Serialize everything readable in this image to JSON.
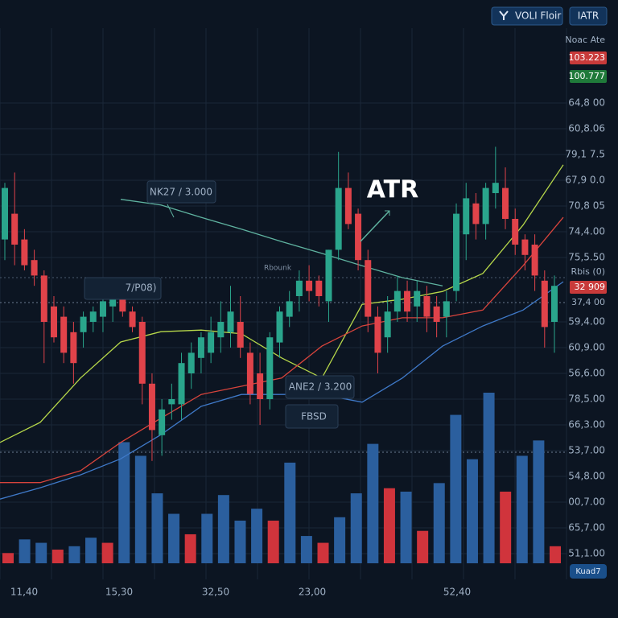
{
  "chart_data": {
    "type": "candlestick",
    "title": "ATR",
    "buttons": [
      "VOLI Floir",
      "IATR"
    ],
    "annotations": [
      "NK27 / 3.000",
      "7/P08)",
      "ANE2 / 3.200",
      "FBSD",
      "Rbounk"
    ],
    "price_badges": [
      {
        "label": "Noac Ate"
      },
      {
        "label": "103.223",
        "color": "#c83a3a"
      },
      {
        "label": "100.777",
        "color": "#1f7a3a"
      },
      {
        "label": "Rbis (0)"
      },
      {
        "label": "32 909",
        "color": "#c83a3a"
      },
      {
        "label": "37,4 00"
      }
    ],
    "corner_label": "Kuad7",
    "xtick_labels": [
      "11,40",
      "15,30",
      "32,50",
      "23,00",
      "52,40"
    ],
    "ylim": [
      0,
      100
    ],
    "yticks": [
      {
        "value": 92.5,
        "label": "64,8 00"
      },
      {
        "value": 87.5,
        "label": "60,8.06"
      },
      {
        "value": 82.5,
        "label": "79,1 7.5"
      },
      {
        "value": 77.5,
        "label": "67,9 0.0"
      },
      {
        "value": 72.5,
        "label": "70,8 05"
      },
      {
        "value": 67.5,
        "label": "74,4.00"
      },
      {
        "value": 62.5,
        "label": "75,5.50"
      },
      {
        "value": 50,
        "label": "59,4.00"
      },
      {
        "value": 45,
        "label": "60,9.00"
      },
      {
        "value": 40,
        "label": "56,6.00"
      },
      {
        "value": 35,
        "label": "78,5.00"
      },
      {
        "value": 30,
        "label": "66,3.00"
      },
      {
        "value": 25,
        "label": "53,7.00"
      },
      {
        "value": 20,
        "label": "54,8.00"
      },
      {
        "value": 15,
        "label": "00,7.00"
      },
      {
        "value": 10,
        "label": "65,7.00"
      },
      {
        "value": 5,
        "label": "51,1.00"
      }
    ],
    "up_color": "#2aa58c",
    "down_color": "#e0434a",
    "candles": {
      "open": [
        66,
        71,
        66,
        62,
        59,
        53,
        51,
        48,
        48,
        50,
        51,
        53,
        55,
        52,
        50,
        38,
        28,
        34,
        34,
        40,
        43,
        44,
        47,
        48,
        50,
        44,
        40,
        35,
        46,
        51,
        55,
        58,
        58,
        54,
        64,
        76,
        71,
        62,
        51,
        47,
        52,
        56,
        53,
        55,
        53,
        51,
        56,
        67,
        73,
        69,
        75,
        76,
        70,
        66,
        65,
        58,
        50
      ],
      "high": [
        77,
        79,
        68,
        64,
        60,
        55,
        53,
        50,
        52,
        53,
        56,
        58,
        57,
        53,
        51,
        40,
        35,
        38,
        44,
        46,
        48,
        51,
        54,
        57,
        55,
        46,
        44,
        48,
        53,
        56,
        60,
        61,
        59,
        64,
        83,
        79,
        72,
        64,
        53,
        55,
        59,
        58,
        58,
        57,
        55,
        56,
        73,
        77,
        75,
        77,
        84,
        80,
        72,
        67,
        67,
        60,
        59
      ],
      "low": [
        62,
        61,
        60,
        57,
        42,
        46,
        42,
        38,
        45,
        48,
        48,
        50,
        51,
        48,
        34,
        23,
        24,
        31,
        31,
        37,
        40,
        42,
        44,
        45,
        43,
        34,
        30,
        33,
        43,
        49,
        52,
        54,
        53,
        50,
        62,
        68,
        60,
        48,
        40,
        44,
        50,
        50,
        50,
        48,
        47,
        47,
        54,
        62,
        66,
        66,
        72,
        68,
        63,
        60,
        56,
        45,
        44
      ],
      "close": [
        76,
        65,
        61,
        59,
        50,
        47,
        44,
        42,
        51,
        52,
        54,
        55,
        52,
        49,
        38,
        29,
        33,
        35,
        42,
        44,
        47,
        48,
        50,
        52,
        45,
        36,
        35,
        47,
        52,
        54,
        58,
        56,
        55,
        64,
        76,
        69,
        62,
        51,
        44,
        52,
        56,
        52,
        56,
        51,
        50,
        54,
        71,
        74,
        69,
        76,
        77,
        70,
        65,
        63,
        59,
        49,
        57
      ]
    },
    "lines": [
      {
        "color": "#b7d84a",
        "values": [
          26.6,
          30.5,
          39.1,
          46.1,
          48.1,
          48.4,
          47.7,
          43.0,
          39.1,
          53.4,
          54.4,
          55.9,
          59.4,
          68.8,
          80.5
        ]
      },
      {
        "color": "#d8443c",
        "values": [
          18.8,
          18.8,
          21.1,
          26.6,
          31.3,
          35.9,
          37.5,
          39.1,
          45.3,
          49.2,
          50.8,
          50.8,
          52.3,
          60.9,
          70.3
        ]
      },
      {
        "color": "#3f79c8",
        "values": [
          15.6,
          17.8,
          20.3,
          23.4,
          28.1,
          33.6,
          35.9,
          35.9,
          35.9,
          34.4,
          39.1,
          45.3,
          49.2,
          52.3,
          57.8
        ]
      },
      {
        "color": "#5fb3a0",
        "values": [
          null,
          null,
          null,
          73.8,
          72.7,
          70.3,
          68.0,
          65.6,
          63.3,
          60.9,
          58.6,
          57.0,
          null,
          null,
          null
        ]
      }
    ],
    "volume": {
      "ylim": [
        0,
        100
      ],
      "values": [
        6,
        14,
        12,
        8,
        10,
        15,
        12,
        71,
        63,
        41,
        29,
        17,
        29,
        40,
        25,
        32,
        25,
        59,
        16,
        12,
        27,
        41,
        70,
        44,
        42,
        19,
        47,
        87,
        61,
        100,
        42,
        63,
        72,
        10
      ],
      "colors": [
        "#d0343c",
        "#2b5f9e",
        "#2b5f9e",
        "#d0343c",
        "#2b5f9e",
        "#2b5f9e",
        "#d0343c",
        "#2b5f9e",
        "#2b5f9e",
        "#2b5f9e",
        "#2b5f9e",
        "#d0343c",
        "#2b5f9e",
        "#2b5f9e",
        "#2b5f9e",
        "#2b5f9e",
        "#d0343c",
        "#2b5f9e",
        "#2b5f9e",
        "#d0343c",
        "#2b5f9e",
        "#2b5f9e",
        "#2b5f9e",
        "#d0343c",
        "#2b5f9e",
        "#d0343c",
        "#2b5f9e",
        "#2b5f9e",
        "#2b5f9e",
        "#2b5f9e",
        "#d0343c",
        "#2b5f9e",
        "#2b5f9e",
        "#d0343c"
      ]
    }
  }
}
